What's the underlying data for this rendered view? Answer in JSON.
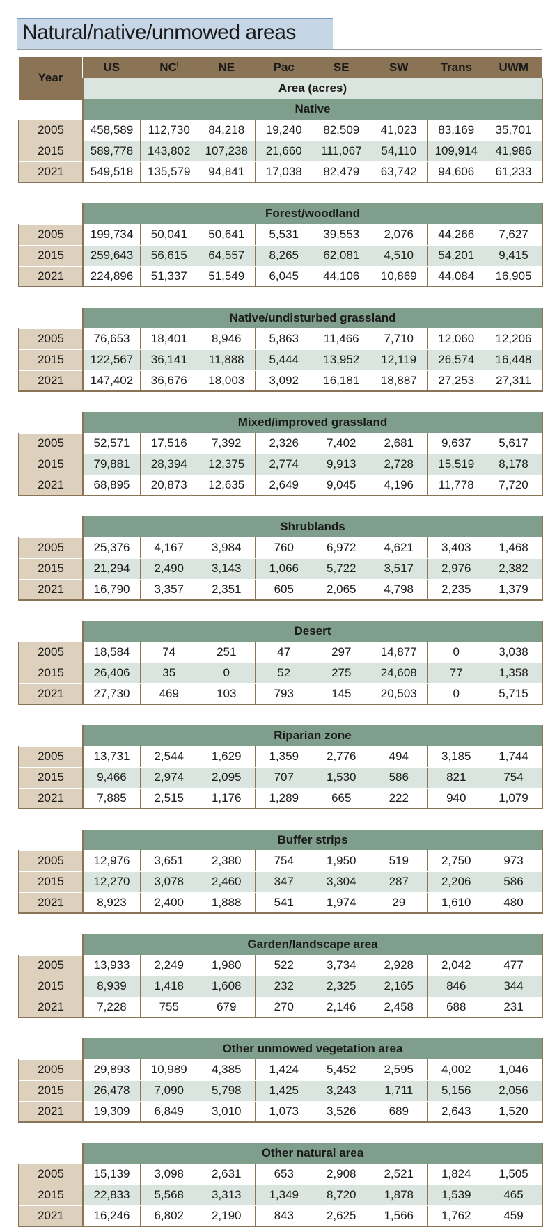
{
  "title": "Natural/native/unmowed areas",
  "header": {
    "year_label": "Year",
    "regions": [
      "US",
      "NC",
      "NE",
      "Pac",
      "SE",
      "SW",
      "Trans",
      "UWM"
    ],
    "nc_superscript": "I",
    "units_label": "Area (acres)"
  },
  "sections": [
    {
      "name": "Native",
      "rows": [
        {
          "year": "2005",
          "values": [
            "458,589",
            "112,730",
            "84,218",
            "19,240",
            "82,509",
            "41,023",
            "83,169",
            "35,701"
          ]
        },
        {
          "year": "2015",
          "values": [
            "589,778",
            "143,802",
            "107,238",
            "21,660",
            "111,067",
            "54,110",
            "109,914",
            "41,986"
          ]
        },
        {
          "year": "2021",
          "values": [
            "549,518",
            "135,579",
            "94,841",
            "17,038",
            "82,479",
            "63,742",
            "94,606",
            "61,233"
          ]
        }
      ]
    },
    {
      "name": "Forest/woodland",
      "rows": [
        {
          "year": "2005",
          "values": [
            "199,734",
            "50,041",
            "50,641",
            "5,531",
            "39,553",
            "2,076",
            "44,266",
            "7,627"
          ]
        },
        {
          "year": "2015",
          "values": [
            "259,643",
            "56,615",
            "64,557",
            "8,265",
            "62,081",
            "4,510",
            "54,201",
            "9,415"
          ]
        },
        {
          "year": "2021",
          "values": [
            "224,896",
            "51,337",
            "51,549",
            "6,045",
            "44,106",
            "10,869",
            "44,084",
            "16,905"
          ]
        }
      ]
    },
    {
      "name": "Native/undisturbed grassland",
      "rows": [
        {
          "year": "2005",
          "values": [
            "76,653",
            "18,401",
            "8,946",
            "5,863",
            "11,466",
            "7,710",
            "12,060",
            "12,206"
          ]
        },
        {
          "year": "2015",
          "values": [
            "122,567",
            "36,141",
            "11,888",
            "5,444",
            "13,952",
            "12,119",
            "26,574",
            "16,448"
          ]
        },
        {
          "year": "2021",
          "values": [
            "147,402",
            "36,676",
            "18,003",
            "3,092",
            "16,181",
            "18,887",
            "27,253",
            "27,311"
          ]
        }
      ]
    },
    {
      "name": "Mixed/improved grassland",
      "rows": [
        {
          "year": "2005",
          "values": [
            "52,571",
            "17,516",
            "7,392",
            "2,326",
            "7,402",
            "2,681",
            "9,637",
            "5,617"
          ]
        },
        {
          "year": "2015",
          "values": [
            "79,881",
            "28,394",
            "12,375",
            "2,774",
            "9,913",
            "2,728",
            "15,519",
            "8,178"
          ]
        },
        {
          "year": "2021",
          "values": [
            "68,895",
            "20,873",
            "12,635",
            "2,649",
            "9,045",
            "4,196",
            "11,778",
            "7,720"
          ]
        }
      ]
    },
    {
      "name": "Shrublands",
      "rows": [
        {
          "year": "2005",
          "values": [
            "25,376",
            "4,167",
            "3,984",
            "760",
            "6,972",
            "4,621",
            "3,403",
            "1,468"
          ]
        },
        {
          "year": "2015",
          "values": [
            "21,294",
            "2,490",
            "3,143",
            "1,066",
            "5,722",
            "3,517",
            "2,976",
            "2,382"
          ]
        },
        {
          "year": "2021",
          "values": [
            "16,790",
            "3,357",
            "2,351",
            "605",
            "2,065",
            "4,798",
            "2,235",
            "1,379"
          ]
        }
      ]
    },
    {
      "name": "Desert",
      "rows": [
        {
          "year": "2005",
          "values": [
            "18,584",
            "74",
            "251",
            "47",
            "297",
            "14,877",
            "0",
            "3,038"
          ]
        },
        {
          "year": "2015",
          "values": [
            "26,406",
            "35",
            "0",
            "52",
            "275",
            "24,608",
            "77",
            "1,358"
          ]
        },
        {
          "year": "2021",
          "values": [
            "27,730",
            "469",
            "103",
            "793",
            "145",
            "20,503",
            "0",
            "5,715"
          ]
        }
      ]
    },
    {
      "name": "Riparian zone",
      "rows": [
        {
          "year": "2005",
          "values": [
            "13,731",
            "2,544",
            "1,629",
            "1,359",
            "2,776",
            "494",
            "3,185",
            "1,744"
          ]
        },
        {
          "year": "2015",
          "values": [
            "9,466",
            "2,974",
            "2,095",
            "707",
            "1,530",
            "586",
            "821",
            "754"
          ]
        },
        {
          "year": "2021",
          "values": [
            "7,885",
            "2,515",
            "1,176",
            "1,289",
            "665",
            "222",
            "940",
            "1,079"
          ]
        }
      ]
    },
    {
      "name": "Buffer strips",
      "rows": [
        {
          "year": "2005",
          "values": [
            "12,976",
            "3,651",
            "2,380",
            "754",
            "1,950",
            "519",
            "2,750",
            "973"
          ]
        },
        {
          "year": "2015",
          "values": [
            "12,270",
            "3,078",
            "2,460",
            "347",
            "3,304",
            "287",
            "2,206",
            "586"
          ]
        },
        {
          "year": "2021",
          "values": [
            "8,923",
            "2,400",
            "1,888",
            "541",
            "1,974",
            "29",
            "1,610",
            "480"
          ]
        }
      ]
    },
    {
      "name": "Garden/landscape area",
      "rows": [
        {
          "year": "2005",
          "values": [
            "13,933",
            "2,249",
            "1,980",
            "522",
            "3,734",
            "2,928",
            "2,042",
            "477"
          ]
        },
        {
          "year": "2015",
          "values": [
            "8,939",
            "1,418",
            "1,608",
            "232",
            "2,325",
            "2,165",
            "846",
            "344"
          ]
        },
        {
          "year": "2021",
          "values": [
            "7,228",
            "755",
            "679",
            "270",
            "2,146",
            "2,458",
            "688",
            "231"
          ]
        }
      ]
    },
    {
      "name": "Other unmowed vegetation area",
      "rows": [
        {
          "year": "2005",
          "values": [
            "29,893",
            "10,989",
            "4,385",
            "1,424",
            "5,452",
            "2,595",
            "4,002",
            "1,046"
          ]
        },
        {
          "year": "2015",
          "values": [
            "26,478",
            "7,090",
            "5,798",
            "1,425",
            "3,243",
            "1,711",
            "5,156",
            "2,056"
          ]
        },
        {
          "year": "2021",
          "values": [
            "19,309",
            "6,849",
            "3,010",
            "1,073",
            "3,526",
            "689",
            "2,643",
            "1,520"
          ]
        }
      ]
    },
    {
      "name": "Other natural area",
      "rows": [
        {
          "year": "2005",
          "values": [
            "15,139",
            "3,098",
            "2,631",
            "653",
            "2,908",
            "2,521",
            "1,824",
            "1,505"
          ]
        },
        {
          "year": "2015",
          "values": [
            "22,833",
            "5,568",
            "3,313",
            "1,349",
            "8,720",
            "1,878",
            "1,539",
            "465"
          ]
        },
        {
          "year": "2021",
          "values": [
            "16,246",
            "6,802",
            "2,190",
            "843",
            "2,625",
            "1,566",
            "1,762",
            "459"
          ]
        }
      ]
    }
  ]
}
